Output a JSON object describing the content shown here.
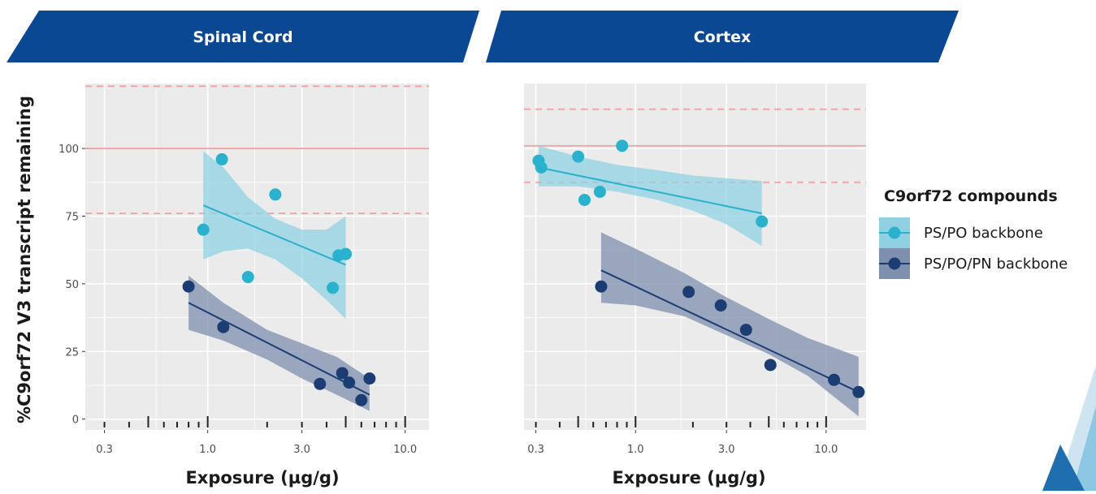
{
  "legend": {
    "title": "C9orf72 compounds",
    "entries": [
      "PS/PO backbone",
      "PS/PO/PN backbone"
    ]
  },
  "ylabel": "%C9orf72 V3 transcript remaining",
  "colors": {
    "banner": "#0a4893",
    "panel_bg": "#ebebeb",
    "grid": "#ffffff",
    "ref_line": "#f4a0a0",
    "ps_po": "#29b1cd",
    "ps_po_band": "#8fd1e3",
    "ps_po_pn": "#1b3d73",
    "ps_po_pn_band": "#7f8fae"
  },
  "chart_data": [
    {
      "type": "scatter",
      "title": "Spinal Cord",
      "xlabel": "Exposure (µg/g)",
      "ylabel": "%C9orf72 V3 transcript remaining",
      "x_scale": "log",
      "xlim": [
        0.24,
        13.2
      ],
      "ylim": [
        -4,
        124
      ],
      "x_ticks": [
        0.3,
        1.0,
        3.0,
        10.0
      ],
      "x_tick_labels": [
        "0.3",
        "1.0",
        "3.0",
        "10.0"
      ],
      "y_ticks": [
        0,
        25,
        50,
        75,
        100
      ],
      "y_tick_labels": [
        "0",
        "25",
        "50",
        "75",
        "100"
      ],
      "grid": true,
      "reference_lines": {
        "solid": [
          100
        ],
        "dashed": [
          76,
          123
        ]
      },
      "rug_x": [
        0.3,
        0.4,
        0.5,
        0.6,
        0.7,
        0.8,
        0.9,
        1.0,
        2.0,
        3.0,
        4.0,
        5.0,
        6.0,
        7.0,
        8.0,
        9.0,
        10.0
      ],
      "series": [
        {
          "name": "PS/PO backbone",
          "x": [
            0.95,
            1.18,
            1.6,
            2.2,
            4.3,
            4.6,
            5.0
          ],
          "y": [
            70,
            96,
            52.5,
            83,
            48.5,
            60.5,
            61
          ],
          "fit": {
            "x": [
              0.95,
              5.0
            ],
            "y": [
              79,
              57
            ]
          },
          "band": {
            "x": [
              0.95,
              1.2,
              1.6,
              2.2,
              3.0,
              4.0,
              5.0
            ],
            "lower": [
              59,
              62,
              63,
              59,
              52,
              44,
              37
            ],
            "upper": [
              99,
              93,
              82,
              74,
              70,
              70,
              75
            ]
          }
        },
        {
          "name": "PS/PO/PN backbone",
          "x": [
            0.8,
            1.2,
            3.7,
            4.8,
            5.2,
            6.0,
            6.6
          ],
          "y": [
            49,
            34,
            13,
            17,
            13.5,
            7,
            15
          ],
          "fit": {
            "x": [
              0.8,
              6.6
            ],
            "y": [
              43,
              9
            ]
          },
          "band": {
            "x": [
              0.8,
              1.2,
              2.0,
              3.0,
              4.5,
              6.6
            ],
            "lower": [
              33,
              29,
              22,
              15,
              9,
              3
            ],
            "upper": [
              53,
              43,
              33,
              28,
              23,
              15
            ]
          }
        }
      ]
    },
    {
      "type": "scatter",
      "title": "Cortex",
      "xlabel": "Exposure (µg/g)",
      "x_scale": "log",
      "xlim": [
        0.26,
        16.2
      ],
      "ylim": [
        -4,
        124
      ],
      "x_ticks": [
        0.3,
        1.0,
        3.0,
        10.0
      ],
      "x_tick_labels": [
        "0.3",
        "1.0",
        "3.0",
        "10.0"
      ],
      "y_ticks": [
        0,
        25,
        50,
        75,
        100
      ],
      "grid": true,
      "reference_lines": {
        "solid": [
          101
        ],
        "dashed": [
          87.5,
          114.5
        ]
      },
      "rug_x": [
        0.3,
        0.4,
        0.5,
        0.6,
        0.7,
        0.8,
        0.9,
        1.0,
        2.0,
        3.0,
        4.0,
        5.0,
        6.0,
        7.0,
        8.0,
        9.0,
        10.0
      ],
      "series": [
        {
          "name": "PS/PO backbone",
          "x": [
            0.31,
            0.32,
            0.5,
            0.54,
            0.65,
            0.85,
            4.6
          ],
          "y": [
            95.5,
            93,
            97,
            81,
            84,
            101,
            73
          ],
          "fit": {
            "x": [
              0.31,
              4.6
            ],
            "y": [
              93,
              76
            ]
          },
          "band": {
            "x": [
              0.31,
              0.5,
              0.8,
              1.3,
              2.0,
              3.0,
              4.6
            ],
            "lower": [
              86,
              86,
              84,
              81,
              77,
              72,
              64
            ],
            "upper": [
              101,
              97,
              94,
              92,
              90,
              89,
              88
            ]
          }
        },
        {
          "name": "PS/PO/PN backbone",
          "x": [
            0.66,
            1.9,
            2.8,
            3.8,
            5.1,
            11.0,
            14.8
          ],
          "y": [
            49,
            47,
            42,
            33,
            20,
            14.5,
            10
          ],
          "fit": {
            "x": [
              0.66,
              14.8
            ],
            "y": [
              55,
              10
            ]
          },
          "band": {
            "x": [
              0.66,
              1.0,
              1.8,
              3.0,
              5.0,
              8.0,
              14.8
            ],
            "lower": [
              43,
              42,
              38,
              31,
              24,
              16,
              1
            ],
            "upper": [
              69,
              63,
              54,
              45,
              37,
              30,
              23
            ]
          }
        }
      ]
    }
  ]
}
